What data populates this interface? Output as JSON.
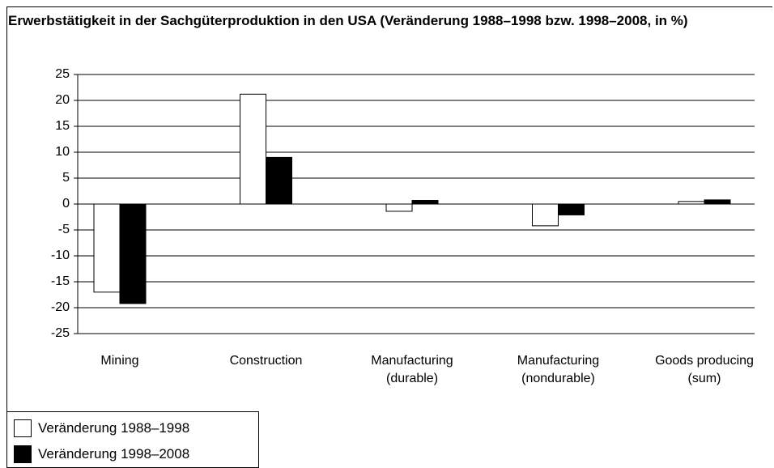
{
  "chart_data": {
    "type": "bar",
    "title": "Erwerbstätigkeit in der Sachgüterproduktion in den USA (Veränderung 1988–1998 bzw. 1998–2008, in %)",
    "categories": [
      "Mining",
      "Construction",
      "Manufacturing (durable)",
      "Manufacturing (nondurable)",
      "Goods producing (sum)"
    ],
    "series": [
      {
        "name": "Veränderung 1988–1998",
        "color": "#ffffff",
        "values": [
          -17,
          21.2,
          -1.4,
          -4.2,
          0.5
        ]
      },
      {
        "name": "Veränderung 1998–2008",
        "color": "#000000",
        "values": [
          -19.2,
          9,
          0.7,
          -2.1,
          0.8
        ]
      }
    ],
    "ylim": [
      -25,
      25
    ],
    "yticks": [
      -25,
      -20,
      -15,
      -10,
      -5,
      0,
      5,
      10,
      15,
      20,
      25
    ],
    "grid": true,
    "legend": "bottom-left"
  }
}
